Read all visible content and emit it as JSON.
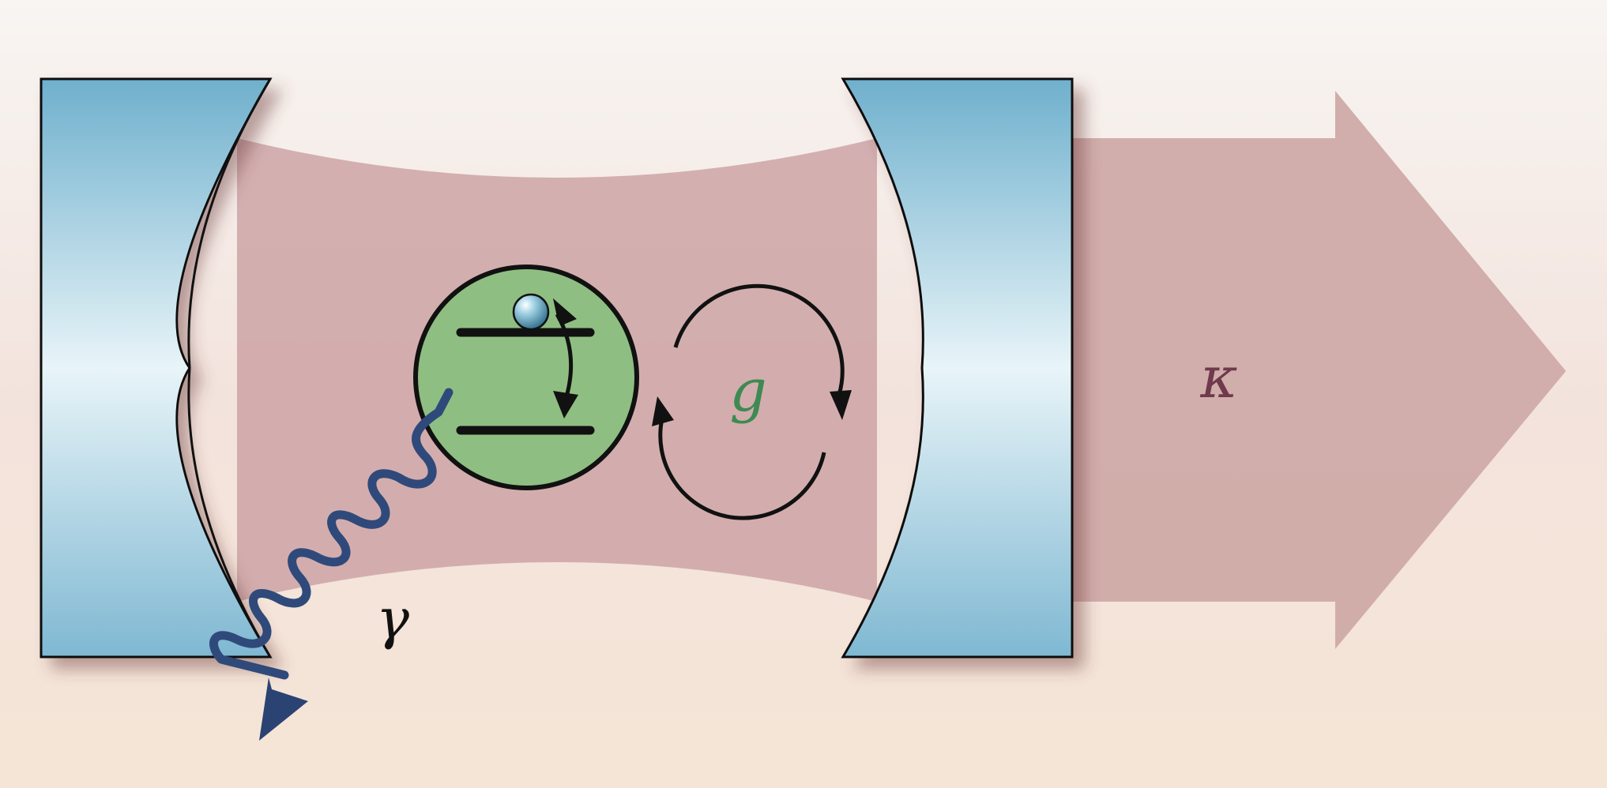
{
  "diagram": {
    "symbols": {
      "coupling": "g",
      "cavity_loss": "κ",
      "spontaneous_emission": "γ"
    },
    "colors": {
      "background_top": "#f8f4f1",
      "background_bottom": "#f5e4d6",
      "cavity_mode": "#c99ea0",
      "output_arrow": "#cfaaa8",
      "mirror_dark": "#6fb0cd",
      "mirror_light": "#e6f3f8",
      "atom_fill": "#8fbe82",
      "photon_wave": "#2f4a7a",
      "coupling_label": "#3e8a52",
      "kappa_label": "#6e3a4c",
      "outline": "#111111"
    }
  }
}
